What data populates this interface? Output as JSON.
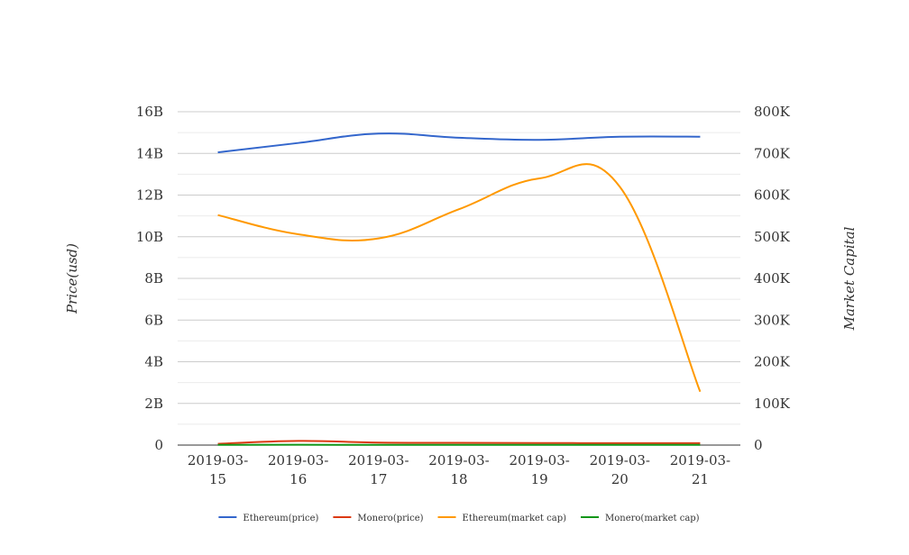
{
  "chart_data": {
    "type": "line",
    "categories": [
      "2019-03-15",
      "2019-03-16",
      "2019-03-17",
      "2019-03-18",
      "2019-03-19",
      "2019-03-20",
      "2019-03-21"
    ],
    "category_labels": [
      [
        "2019-03-",
        "15"
      ],
      [
        "2019-03-",
        "16"
      ],
      [
        "2019-03-",
        "17"
      ],
      [
        "2019-03-",
        "18"
      ],
      [
        "2019-03-",
        "19"
      ],
      [
        "2019-03-",
        "20"
      ],
      [
        "2019-03-",
        "21"
      ]
    ],
    "ylabel": "Price(usd)",
    "y2label": "Market Capital",
    "ylim": [
      0,
      16000000000
    ],
    "y2lim": [
      0,
      800000
    ],
    "y_ticks": [
      "0",
      "2B",
      "4B",
      "6B",
      "8B",
      "10B",
      "12B",
      "14B",
      "16B"
    ],
    "y2_ticks": [
      "0",
      "100K",
      "200K",
      "300K",
      "400K",
      "500K",
      "600K",
      "700K",
      "800K"
    ],
    "grid": true,
    "legend_position": "bottom",
    "series": [
      {
        "name": "Ethereum(price)",
        "axis": "left",
        "color": "#3366cc",
        "values": [
          14050000000,
          14500000000,
          14950000000,
          14750000000,
          14650000000,
          14800000000,
          14800000000
        ]
      },
      {
        "name": "Monero(price)",
        "axis": "left",
        "color": "#dc3912",
        "values": [
          60000000,
          200000000,
          120000000,
          110000000,
          100000000,
          90000000,
          90000000
        ]
      },
      {
        "name": "Ethereum(market cap)",
        "axis": "right",
        "color": "#ff9900",
        "values": [
          552000,
          506000,
          496000,
          566000,
          640000,
          620000,
          128000
        ]
      },
      {
        "name": "Monero(market cap)",
        "axis": "right",
        "color": "#109618",
        "values": [
          500,
          700,
          600,
          600,
          600,
          500,
          500
        ]
      }
    ]
  }
}
